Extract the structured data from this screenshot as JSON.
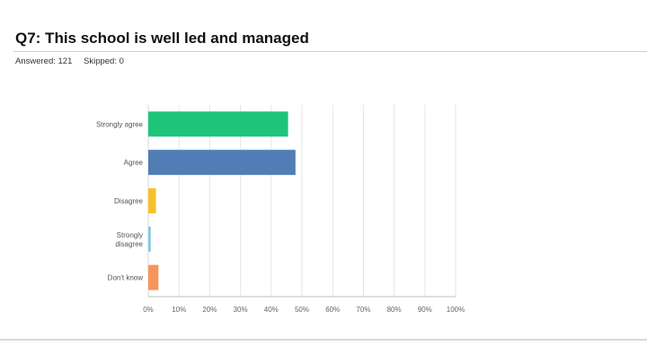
{
  "question": {
    "title": "Q7: This school is well led and managed",
    "answered": "Answered: 121",
    "skipped": "Skipped: 0"
  },
  "chart_data": {
    "type": "bar",
    "orientation": "horizontal",
    "title": "Q7: This school is well led and managed",
    "categories": [
      [
        "Strongly agree"
      ],
      [
        "Agree"
      ],
      [
        "Disagree"
      ],
      [
        "Strongly",
        "disagree"
      ],
      [
        "Don't know"
      ]
    ],
    "values": [
      45.5,
      47.9,
      2.5,
      0.8,
      3.3
    ],
    "colors": [
      "#1ec47a",
      "#507db5",
      "#f5c02b",
      "#7ecbd9",
      "#f6955a"
    ],
    "xlim": [
      0,
      100
    ],
    "xticks": [
      0,
      10,
      20,
      30,
      40,
      50,
      60,
      70,
      80,
      90,
      100
    ],
    "xtick_labels": [
      "0%",
      "10%",
      "20%",
      "30%",
      "40%",
      "50%",
      "60%",
      "70%",
      "80%",
      "90%",
      "100%"
    ],
    "grid": true,
    "xlabel": "",
    "ylabel": ""
  }
}
